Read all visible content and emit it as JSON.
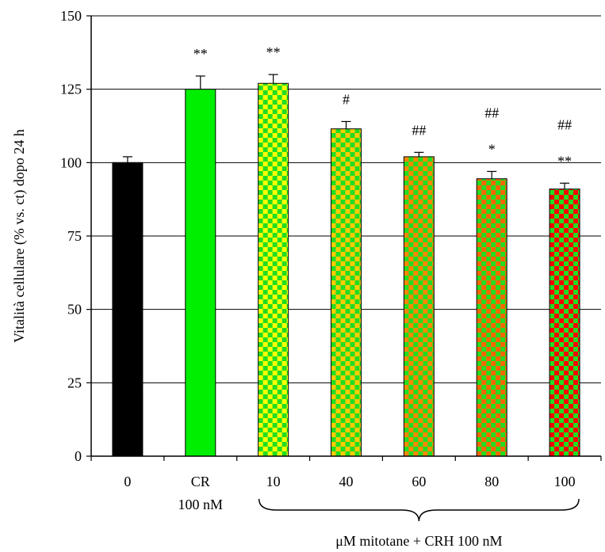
{
  "chart_data": {
    "type": "bar",
    "categories": [
      "0",
      "CR\n100 nM",
      "10",
      "40",
      "60",
      "80",
      "100"
    ],
    "values": [
      100,
      125,
      127,
      111.5,
      102,
      94.5,
      91
    ],
    "errors": [
      2.0,
      4.5,
      3.0,
      2.5,
      1.5,
      2.5,
      2.0
    ],
    "annotations": [
      [],
      [
        "**"
      ],
      [
        "**"
      ],
      [
        "#"
      ],
      [
        "##"
      ],
      [
        "*",
        "##"
      ],
      [
        "**",
        "##"
      ]
    ],
    "fills": [
      {
        "kind": "solid",
        "color": "#000000"
      },
      {
        "kind": "solid",
        "color": "#00ee00"
      },
      {
        "kind": "checker",
        "colors": [
          "#ffff00",
          "#22dd22"
        ]
      },
      {
        "kind": "checker",
        "colors": [
          "#ffcc00",
          "#22dd22"
        ]
      },
      {
        "kind": "checker",
        "colors": [
          "#ff8800",
          "#22dd22"
        ]
      },
      {
        "kind": "checker",
        "colors": [
          "#ff6600",
          "#22dd22"
        ]
      },
      {
        "kind": "checker",
        "colors": [
          "#ff0000",
          "#22dd22"
        ]
      }
    ],
    "ylabel": "Vitalità cellulare (% vs. ct) dopo 24 h",
    "xlabel": "",
    "group_label": "μM mitotane + CRH 100 nM",
    "ylim": [
      0,
      150
    ],
    "yticks": [
      0,
      25,
      50,
      75,
      100,
      125,
      150
    ],
    "grid": true
  }
}
